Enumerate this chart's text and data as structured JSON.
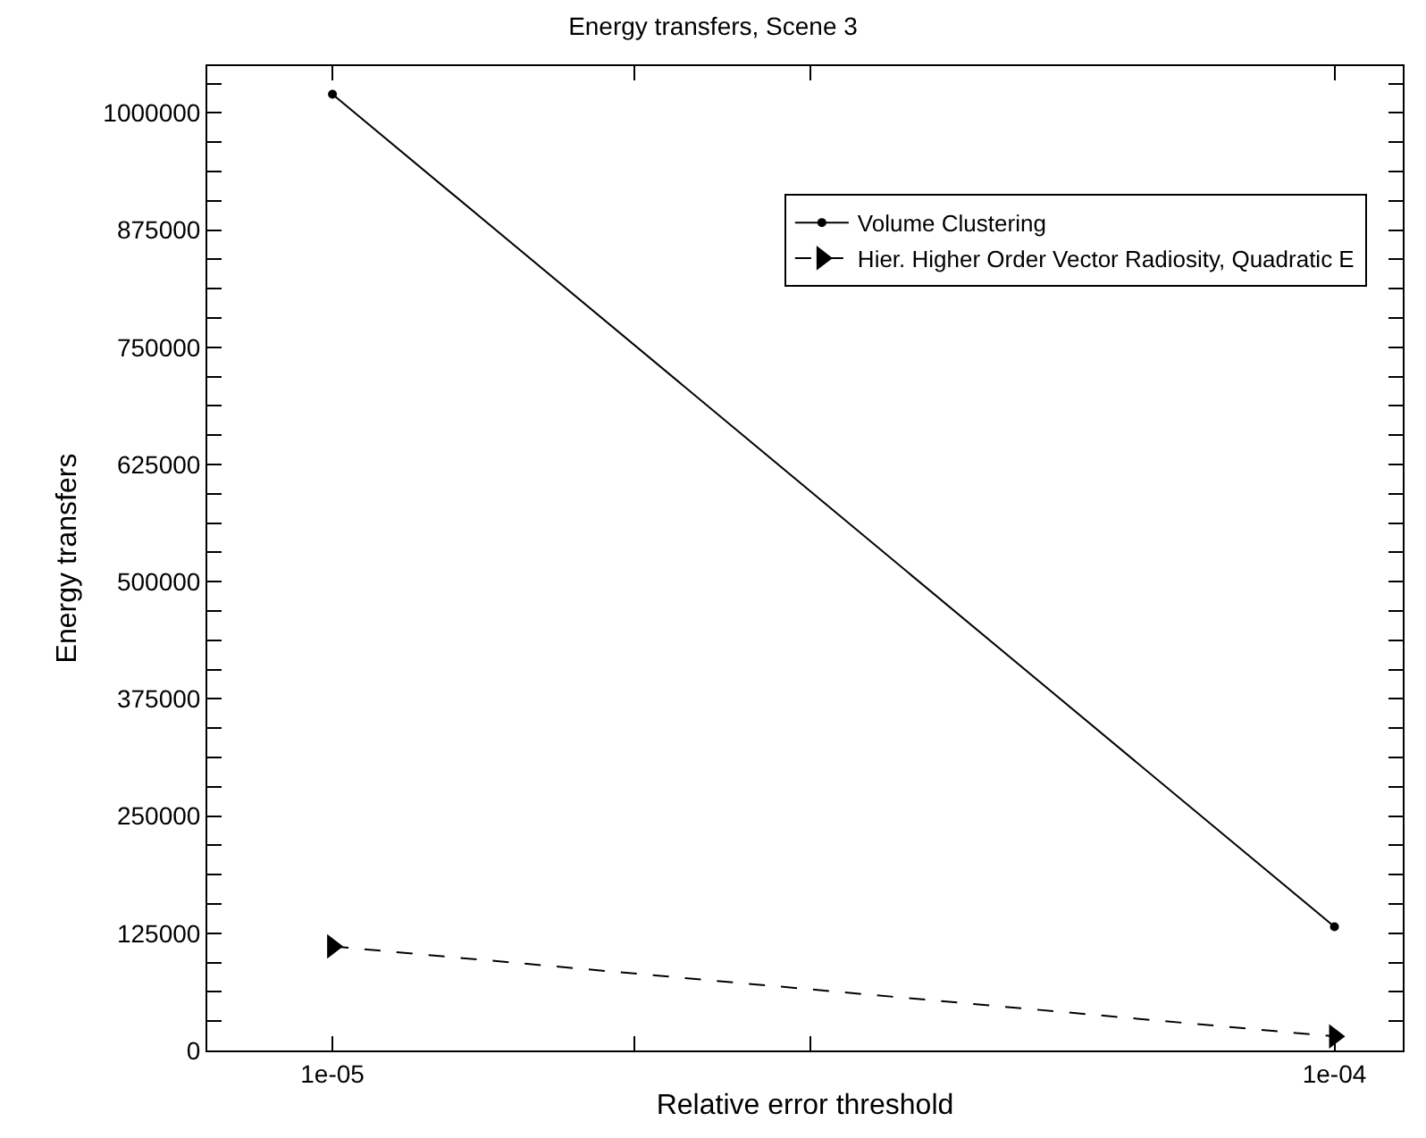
{
  "chart_data": {
    "type": "line",
    "title": "Energy transfers, Scene 3",
    "xlabel": "Relative error threshold",
    "ylabel": "Energy transfers",
    "x": [
      1e-05,
      0.0001
    ],
    "log": "x",
    "series": [
      {
        "name": "Volume Clustering",
        "color": "#000000",
        "values": [
          1020000,
          132000
        ],
        "marker": "circle",
        "line_style": "solid"
      },
      {
        "name": "Hier. Higher Order Vector Radiosity, Quadratic E",
        "color": "#000000",
        "values": [
          111000,
          15000
        ],
        "marker": "triangle",
        "line_style": "dashed"
      }
    ],
    "xlim": [
      7.5e-06,
      0.000117
    ],
    "xticks": [
      {
        "value": 1e-05,
        "label": "1e-05"
      },
      {
        "value": 2e-05,
        "label": null
      },
      {
        "value": 3e-05,
        "label": null
      },
      {
        "value": 0.0001,
        "label": "1e-04"
      }
    ],
    "ylim": [
      0,
      1050000
    ],
    "yticks": [
      0,
      {
        "value": 31250,
        "label": null
      },
      {
        "value": 62500,
        "label": null
      },
      {
        "value": 93750,
        "label": null
      },
      125000,
      {
        "value": 156250,
        "label": null
      },
      {
        "value": 187500,
        "label": null
      },
      {
        "value": 218750,
        "label": null
      },
      250000,
      {
        "value": 281250,
        "label": null
      },
      {
        "value": 312500,
        "label": null
      },
      {
        "value": 343750,
        "label": null
      },
      375000,
      {
        "value": 406250,
        "label": null
      },
      {
        "value": 437500,
        "label": null
      },
      {
        "value": 468750,
        "label": null
      },
      500000,
      {
        "value": 531250,
        "label": null
      },
      {
        "value": 562500,
        "label": null
      },
      {
        "value": 593750,
        "label": null
      },
      625000,
      {
        "value": 656250,
        "label": null
      },
      {
        "value": 687500,
        "label": null
      },
      {
        "value": 718750,
        "label": null
      },
      750000,
      {
        "value": 781250,
        "label": null
      },
      {
        "value": 812500,
        "label": null
      },
      {
        "value": 843750,
        "label": null
      },
      875000,
      {
        "value": 906250,
        "label": null
      },
      {
        "value": 937500,
        "label": null
      },
      {
        "value": 968750,
        "label": null
      },
      1000000,
      {
        "value": 1031250,
        "label": null
      }
    ],
    "legend": "top right"
  }
}
